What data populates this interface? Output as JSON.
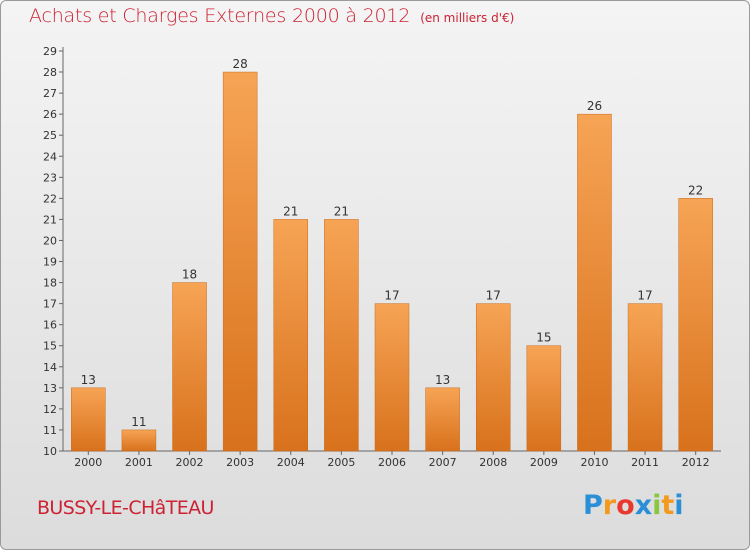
{
  "chart_data": {
    "type": "bar",
    "title": "Achats et Charges Externes 2000 à 2012",
    "unit_label": "(en milliers d'€)",
    "categories": [
      "2000",
      "2001",
      "2002",
      "2003",
      "2004",
      "2005",
      "2006",
      "2007",
      "2008",
      "2009",
      "2010",
      "2011",
      "2012"
    ],
    "values": [
      13,
      11,
      18,
      28,
      21,
      21,
      17,
      13,
      17,
      15,
      26,
      17,
      22
    ],
    "ylim": [
      10,
      29
    ],
    "yticks": [
      10,
      11,
      12,
      13,
      14,
      15,
      16,
      17,
      18,
      19,
      20,
      21,
      22,
      23,
      24,
      25,
      26,
      27,
      28,
      29
    ],
    "grid": false,
    "bar_color": "#f0923a"
  },
  "place_name": "BUSSY-LE-CHâTEAU",
  "logo": {
    "letters": [
      "P",
      "r",
      "o",
      "x",
      "i",
      "t",
      "i"
    ],
    "colors": [
      "#2a8fd6",
      "#f29a1f",
      "#e8382f",
      "#2a8fd6",
      "#8cc63f",
      "#f29a1f",
      "#2a8fd6"
    ]
  }
}
